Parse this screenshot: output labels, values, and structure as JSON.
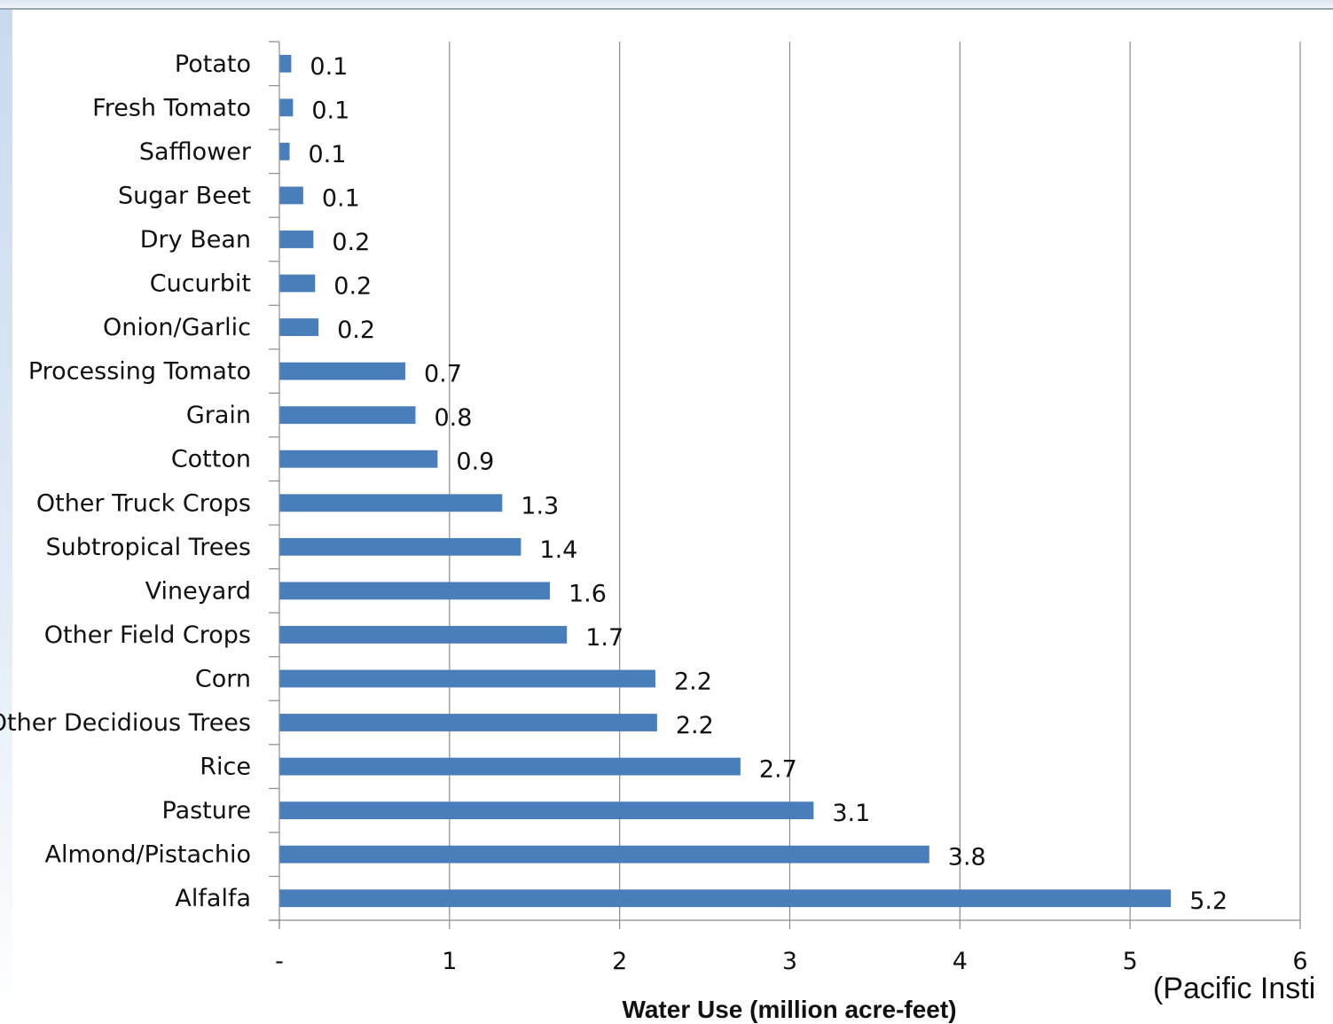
{
  "chart_data": {
    "type": "bar",
    "orientation": "horizontal",
    "categories": [
      "Potato",
      "Fresh Tomato",
      "Safflower",
      "Sugar Beet",
      "Dry Bean",
      "Cucurbit",
      "Onion/Garlic",
      "Processing Tomato",
      "Grain",
      "Cotton",
      "Other Truck Crops",
      "Subtropical Trees",
      "Vineyard",
      "Other Field Crops",
      "Corn",
      "Other Decidious Trees",
      "Rice",
      "Pasture",
      "Almond/Pistachio",
      "Alfalfa"
    ],
    "values": [
      0.07,
      0.08,
      0.06,
      0.14,
      0.2,
      0.21,
      0.23,
      0.74,
      0.8,
      0.93,
      1.31,
      1.42,
      1.59,
      1.69,
      2.21,
      2.22,
      2.71,
      3.14,
      3.82,
      5.24
    ],
    "value_labels": [
      "0.1",
      "0.1",
      "0.1",
      "0.1",
      "0.2",
      "0.2",
      "0.2",
      "0.7",
      "0.8",
      "0.9",
      "1.3",
      "1.4",
      "1.6",
      "1.7",
      "2.2",
      "2.2",
      "2.7",
      "3.1",
      "3.8",
      "5.2"
    ],
    "xlabel": "Water Use (million acre-feet)",
    "xlim": [
      0,
      6
    ],
    "xticks": [
      0,
      1,
      2,
      3,
      4,
      5,
      6
    ],
    "xtick_labels": [
      "-",
      "1",
      "2",
      "3",
      "4",
      "5",
      "6"
    ],
    "grid": "vertical",
    "legend": "none",
    "bar_color": "#4a7ebb"
  },
  "source_note": "(Pacific Insti"
}
